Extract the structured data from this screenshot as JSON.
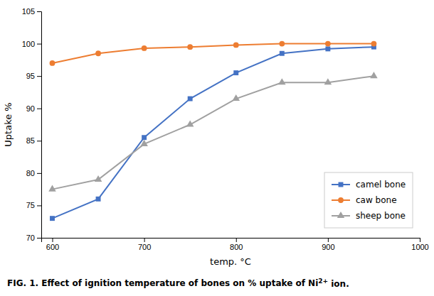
{
  "chart_data": {
    "type": "line",
    "xlabel": "temp. °C",
    "ylabel": "Uptake %",
    "x": [
      600,
      650,
      700,
      750,
      800,
      850,
      900,
      950
    ],
    "series": [
      {
        "name": "camel bone",
        "color": "#4472C4",
        "marker": "square",
        "values": [
          73,
          76,
          85.5,
          91.5,
          95.5,
          98.5,
          99.2,
          99.5
        ]
      },
      {
        "name": "caw bone",
        "color": "#ED7D31",
        "marker": "circle",
        "values": [
          97,
          98.5,
          99.3,
          99.5,
          99.8,
          100,
          100,
          100
        ]
      },
      {
        "name": "sheep bone",
        "color": "#A0A0A0",
        "marker": "triangle",
        "values": [
          77.5,
          79,
          84.5,
          87.5,
          91.5,
          94,
          94,
          95
        ]
      }
    ],
    "xlim": [
      588,
      1000
    ],
    "ylim": [
      70,
      105
    ],
    "xticks": [
      600,
      700,
      800,
      900,
      1000
    ],
    "yticks": [
      70,
      75,
      80,
      85,
      90,
      95,
      100,
      105
    ],
    "grid": false,
    "legend": "lower right",
    "caption": {
      "text": "FIG. 1. Effect of ignition temperature of bones on % uptake of Ni",
      "superscript": "2+",
      "end": " ion."
    }
  }
}
